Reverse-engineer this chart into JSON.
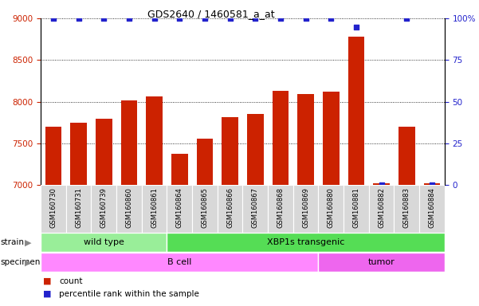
{
  "title": "GDS2640 / 1460581_a_at",
  "samples": [
    "GSM160730",
    "GSM160731",
    "GSM160739",
    "GSM160860",
    "GSM160861",
    "GSM160864",
    "GSM160865",
    "GSM160866",
    "GSM160867",
    "GSM160868",
    "GSM160869",
    "GSM160880",
    "GSM160881",
    "GSM160882",
    "GSM160883",
    "GSM160884"
  ],
  "counts": [
    7700,
    7750,
    7800,
    8020,
    8060,
    7380,
    7560,
    7820,
    7850,
    8130,
    8090,
    8120,
    8780,
    7020,
    7700,
    7020
  ],
  "percentiles": [
    100,
    100,
    100,
    100,
    100,
    100,
    100,
    100,
    100,
    100,
    100,
    100,
    95,
    0,
    100,
    0
  ],
  "bar_color": "#cc2200",
  "dot_color": "#2222cc",
  "ylim_left": [
    7000,
    9000
  ],
  "ylim_right": [
    0,
    100
  ],
  "yticks_left": [
    7000,
    7500,
    8000,
    8500,
    9000
  ],
  "yticks_right": [
    0,
    25,
    50,
    75,
    100
  ],
  "strain_groups": [
    {
      "label": "wild type",
      "start": 0,
      "end": 5,
      "color": "#99ee99"
    },
    {
      "label": "XBP1s transgenic",
      "start": 5,
      "end": 16,
      "color": "#55dd55"
    }
  ],
  "specimen_groups": [
    {
      "label": "B cell",
      "start": 0,
      "end": 11,
      "color": "#ff88ff"
    },
    {
      "label": "tumor",
      "start": 11,
      "end": 16,
      "color": "#ee66ee"
    }
  ],
  "legend_items": [
    {
      "color": "#cc2200",
      "label": "count"
    },
    {
      "color": "#2222cc",
      "label": "percentile rank within the sample"
    }
  ]
}
